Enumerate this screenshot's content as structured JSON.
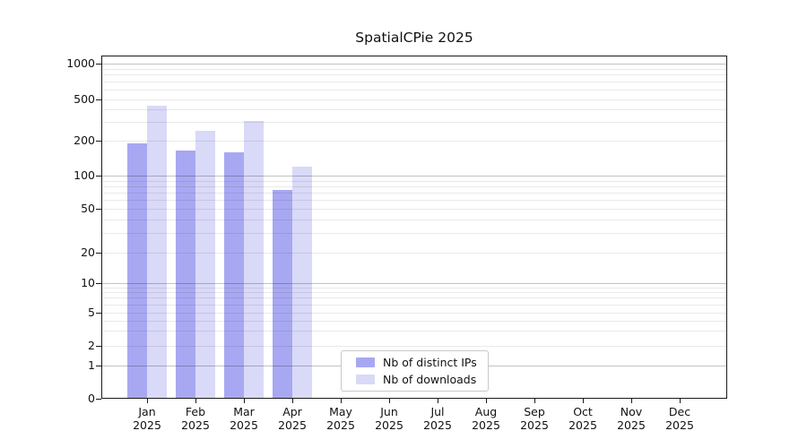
{
  "title": "SpatialCPie 2025",
  "chart_data": {
    "type": "bar",
    "title": "SpatialCPie 2025",
    "months": [
      "Jan",
      "Feb",
      "Mar",
      "Apr",
      "May",
      "Jun",
      "Jul",
      "Aug",
      "Sep",
      "Oct",
      "Nov",
      "Dec"
    ],
    "year": "2025",
    "series": [
      {
        "name": "Nb of distinct IPs",
        "color": "#a8a8f2",
        "values": [
          190,
          164,
          158,
          74,
          0,
          0,
          0,
          0,
          0,
          0,
          0,
          0
        ]
      },
      {
        "name": "Nb of downloads",
        "color": "#d9d9f8",
        "values": [
          430,
          250,
          310,
          120,
          0,
          0,
          0,
          0,
          0,
          0,
          0,
          0
        ]
      }
    ],
    "yticks": [
      0,
      1,
      2,
      5,
      10,
      20,
      50,
      100,
      200,
      500,
      1000
    ],
    "yscale": "symlog",
    "ylim": [
      0,
      1150
    ],
    "grid": "minor light gray lines, darker major lines at 1, 10, 100, 1000",
    "legend_position": "lower center inside plot"
  }
}
